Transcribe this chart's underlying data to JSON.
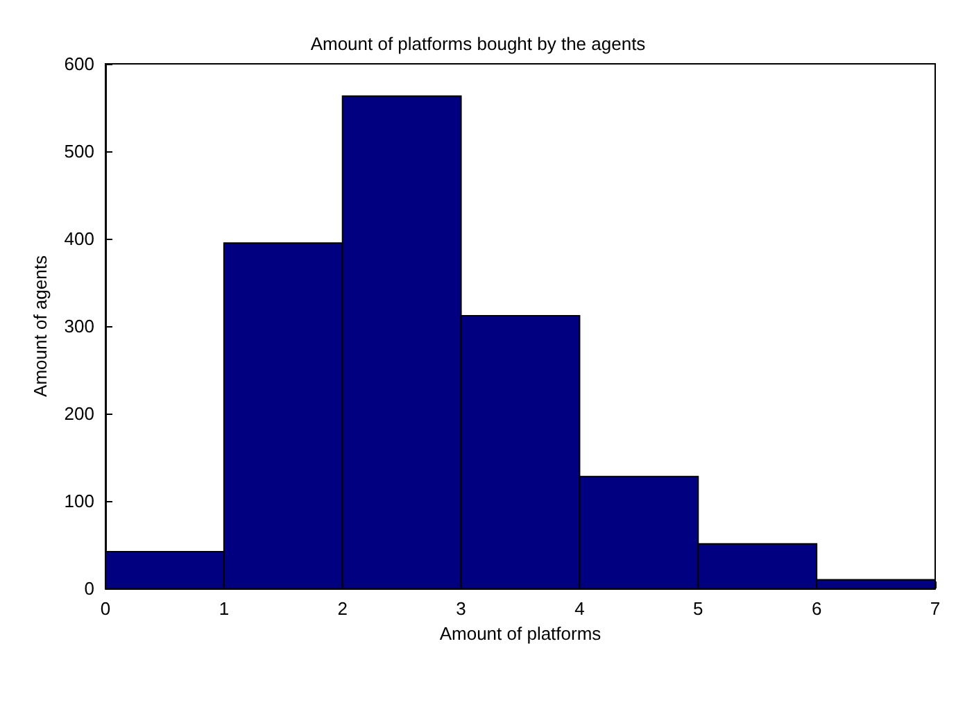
{
  "chart_data": {
    "type": "histogram",
    "title": "Amount of platforms bought by the agents",
    "xlabel": "Amount of platforms",
    "ylabel": "Amount of agents",
    "bins": [
      0,
      1,
      2,
      3,
      4,
      5,
      6,
      7
    ],
    "values": [
      42,
      395,
      563,
      312,
      128,
      51,
      10
    ],
    "color": "#000080",
    "xlim": [
      0,
      7
    ],
    "xticks": [
      0,
      1,
      2,
      3,
      4,
      5,
      6,
      7
    ],
    "ylim": [
      0,
      600
    ],
    "yticks": [
      0,
      100,
      200,
      300,
      400,
      500,
      600
    ],
    "grid": false
  }
}
